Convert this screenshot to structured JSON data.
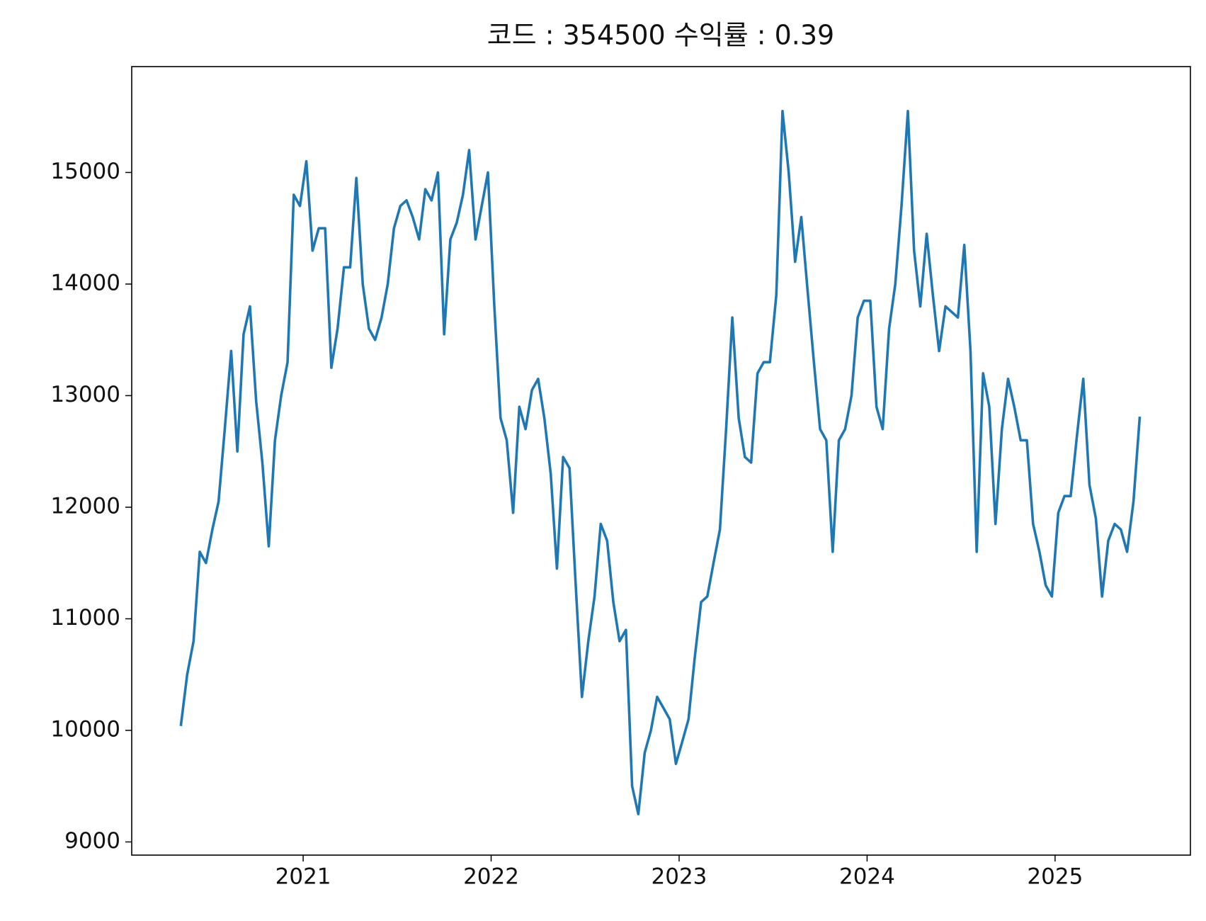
{
  "chart_data": {
    "type": "line",
    "title": "코드 : 354500 수익률 : 0.39",
    "color": "#1f77b4",
    "x": [
      2020.35,
      2020.383,
      2020.417,
      2020.45,
      2020.483,
      2020.517,
      2020.55,
      2020.583,
      2020.617,
      2020.65,
      2020.683,
      2020.717,
      2020.75,
      2020.783,
      2020.817,
      2020.85,
      2020.883,
      2020.917,
      2020.95,
      2020.983,
      2021.017,
      2021.05,
      2021.083,
      2021.117,
      2021.15,
      2021.183,
      2021.217,
      2021.25,
      2021.283,
      2021.317,
      2021.35,
      2021.383,
      2021.417,
      2021.45,
      2021.483,
      2021.517,
      2021.55,
      2021.583,
      2021.617,
      2021.65,
      2021.683,
      2021.717,
      2021.75,
      2021.783,
      2021.817,
      2021.85,
      2021.883,
      2021.917,
      2021.95,
      2021.983,
      2022.017,
      2022.05,
      2022.083,
      2022.117,
      2022.15,
      2022.183,
      2022.217,
      2022.25,
      2022.283,
      2022.317,
      2022.35,
      2022.383,
      2022.417,
      2022.45,
      2022.483,
      2022.517,
      2022.55,
      2022.583,
      2022.617,
      2022.65,
      2022.683,
      2022.717,
      2022.75,
      2022.783,
      2022.817,
      2022.85,
      2022.883,
      2022.917,
      2022.95,
      2022.983,
      2023.017,
      2023.05,
      2023.083,
      2023.117,
      2023.15,
      2023.183,
      2023.217,
      2023.25,
      2023.283,
      2023.317,
      2023.35,
      2023.383,
      2023.417,
      2023.45,
      2023.483,
      2023.517,
      2023.55,
      2023.583,
      2023.617,
      2023.65,
      2023.683,
      2023.717,
      2023.75,
      2023.783,
      2023.817,
      2023.85,
      2023.883,
      2023.917,
      2023.95,
      2023.983,
      2024.017,
      2024.05,
      2024.083,
      2024.117,
      2024.15,
      2024.183,
      2024.217,
      2024.25,
      2024.283,
      2024.317,
      2024.35,
      2024.383,
      2024.417,
      2024.45,
      2024.483,
      2024.517,
      2024.55,
      2024.583,
      2024.617,
      2024.65,
      2024.683,
      2024.717,
      2024.75,
      2024.783,
      2024.817,
      2024.85,
      2024.883,
      2024.917,
      2024.95,
      2024.983,
      2025.017,
      2025.05,
      2025.083,
      2025.117,
      2025.15,
      2025.183,
      2025.217,
      2025.25,
      2025.283,
      2025.317,
      2025.35,
      2025.383,
      2025.417,
      2025.45
    ],
    "values": [
      10050,
      10500,
      10800,
      11600,
      11500,
      11800,
      12050,
      12700,
      13400,
      12500,
      13550,
      13800,
      12950,
      12400,
      11650,
      12600,
      13000,
      13300,
      14800,
      14700,
      15100,
      14300,
      14500,
      14500,
      13250,
      13600,
      14150,
      14150,
      14950,
      14000,
      13600,
      13500,
      13700,
      14000,
      14500,
      14700,
      14750,
      14600,
      14400,
      14850,
      14750,
      15000,
      13550,
      14400,
      14550,
      14800,
      15200,
      14400,
      14700,
      15000,
      13800,
      12800,
      12600,
      11950,
      12900,
      12700,
      13050,
      13150,
      12800,
      12300,
      11450,
      12450,
      12350,
      11300,
      10300,
      10800,
      11200,
      11850,
      11700,
      11150,
      10800,
      10900,
      9500,
      9250,
      9800,
      10000,
      10300,
      10200,
      10100,
      9700,
      9900,
      10100,
      10650,
      11150,
      11200,
      11500,
      11800,
      12700,
      13700,
      12800,
      12450,
      12400,
      13200,
      13300,
      13300,
      13900,
      15550,
      15000,
      14200,
      14600,
      13950,
      13300,
      12700,
      12600,
      11600,
      12600,
      12700,
      13000,
      13700,
      13850,
      13850,
      12900,
      12700,
      13600,
      14000,
      14700,
      15550,
      14300,
      13800,
      14450,
      13900,
      13400,
      13800,
      13750,
      13700,
      14350,
      13400,
      11600,
      13200,
      12900,
      11850,
      12700,
      13150,
      12900,
      12600,
      12600,
      11850,
      11600,
      11300,
      11200,
      11950,
      12100,
      12100,
      12650,
      13150,
      12200,
      11900,
      11200,
      11700,
      11850,
      11800,
      11600,
      12050,
      12800
    ],
    "xlim": [
      2020.088,
      2025.72
    ],
    "xticks": [
      2021,
      2022,
      2023,
      2024,
      2025
    ],
    "ylim": [
      8882,
      15949
    ],
    "yticks": [
      9000,
      10000,
      11000,
      12000,
      13000,
      14000,
      15000
    ],
    "grid": false
  }
}
